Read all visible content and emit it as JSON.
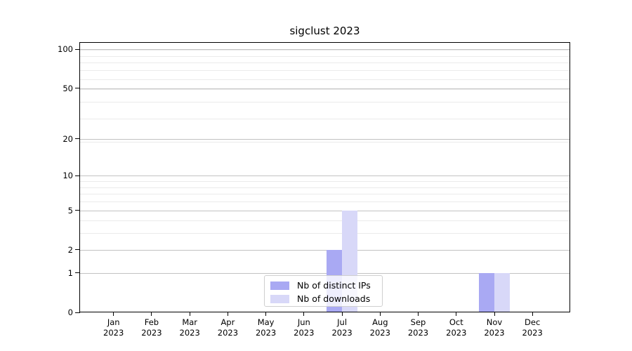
{
  "chart_data": {
    "type": "bar",
    "title": "sigclust 2023",
    "x_tick_labels": [
      {
        "month": "Jan",
        "year": "2023"
      },
      {
        "month": "Feb",
        "year": "2023"
      },
      {
        "month": "Mar",
        "year": "2023"
      },
      {
        "month": "Apr",
        "year": "2023"
      },
      {
        "month": "May",
        "year": "2023"
      },
      {
        "month": "Jun",
        "year": "2023"
      },
      {
        "month": "Jul",
        "year": "2023"
      },
      {
        "month": "Aug",
        "year": "2023"
      },
      {
        "month": "Sep",
        "year": "2023"
      },
      {
        "month": "Oct",
        "year": "2023"
      },
      {
        "month": "Nov",
        "year": "2023"
      },
      {
        "month": "Dec",
        "year": "2023"
      }
    ],
    "series": [
      {
        "name": "Nb of distinct IPs",
        "slug": "distinct-ips",
        "color": "#a9a9f3",
        "values": [
          0,
          0,
          0,
          0,
          0,
          0,
          2,
          0,
          0,
          0,
          1,
          0
        ]
      },
      {
        "name": "Nb of downloads",
        "slug": "downloads",
        "color": "#d8d8f8",
        "values": [
          0,
          0,
          0,
          0,
          0,
          0,
          5,
          0,
          0,
          0,
          1,
          0
        ]
      }
    ],
    "y_axis": {
      "scale": "log1p",
      "range": [
        0,
        100
      ],
      "ticks": [
        0,
        1,
        2,
        5,
        10,
        20,
        50,
        100
      ],
      "minor_ticks": [
        3,
        4,
        6,
        7,
        8,
        9,
        19,
        29,
        39,
        49,
        59,
        69,
        79,
        89,
        99
      ]
    },
    "legend": {
      "position": "lower center"
    },
    "grid": "y",
    "style": {
      "grid_major": "#c2c2c2",
      "grid_minor": "#ebebeb",
      "axis_color": "#000000",
      "background": "#ffffff"
    }
  }
}
